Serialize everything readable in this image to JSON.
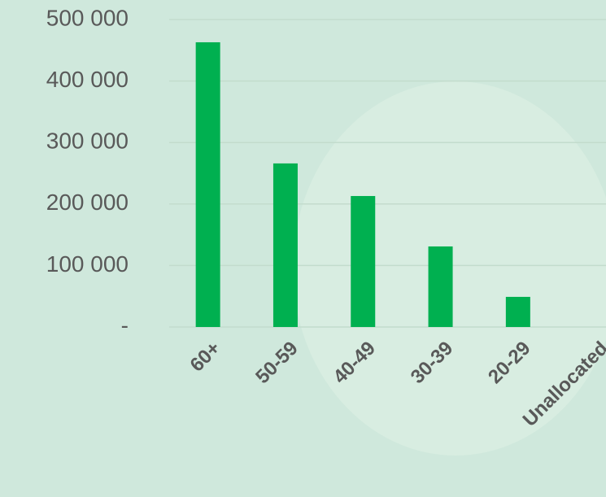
{
  "chart_data": {
    "type": "bar",
    "categories": [
      "60+",
      "50-59",
      "40-49",
      "30-39",
      "20-29",
      "Unallocated"
    ],
    "values": [
      463000,
      266000,
      213000,
      131000,
      49000,
      0
    ],
    "color": "#00b050",
    "ylim": [
      0,
      500000
    ],
    "yticks": [
      {
        "value": 0,
        "label": "-"
      },
      {
        "value": 100000,
        "label": "100 000"
      },
      {
        "value": 200000,
        "label": "200 000"
      },
      {
        "value": 300000,
        "label": "300 000"
      },
      {
        "value": 400000,
        "label": "400 000"
      },
      {
        "value": 500000,
        "label": "500 000"
      }
    ],
    "grid": true
  }
}
